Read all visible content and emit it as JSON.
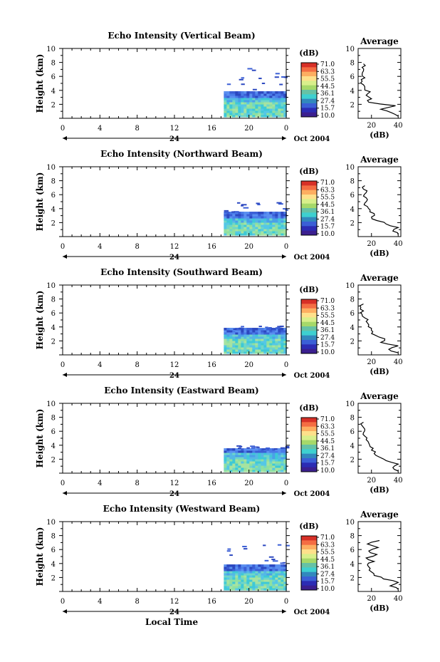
{
  "figure": {
    "colorbar_unit": "(dB)",
    "colorbar_ticks": [
      "71.0",
      "63.3",
      "55.5",
      "44.5",
      "36.1",
      "27.4",
      "15.7",
      "10.0"
    ],
    "colorbar_colors": [
      "#d73027",
      "#f46d43",
      "#fdae61",
      "#fee08b",
      "#d9ef8b",
      "#a6d96a",
      "#66c2a5",
      "#3ed0d0",
      "#3288bd",
      "#3b5fd6",
      "#2c2cb4",
      "#3b1f8f"
    ],
    "avg_title": "Average",
    "avg_xlabel": "(dB)",
    "bottom_label": "Local Time"
  },
  "chart_data": [
    {
      "type": "heatmap",
      "title": "Echo Intensity (Vertical Beam)",
      "ylabel": "Height (km)",
      "xlim": [
        0,
        24
      ],
      "ylim": [
        0,
        10
      ],
      "x_ticks": [
        "0",
        "4",
        "8",
        "12",
        "16",
        "20",
        "0"
      ],
      "y_ticks": [
        "2",
        "4",
        "6",
        "8",
        "10"
      ],
      "date_label": "24",
      "date_right": "Oct 2004",
      "echo_region": {
        "x_start": 17.3,
        "x_end": 24,
        "y_min": 0.2,
        "y_max": 3.6,
        "scattered_top": 7.5
      },
      "average": {
        "xlim": [
          10,
          42
        ],
        "x_ticks": [
          "20",
          "40"
        ],
        "ylim": [
          0,
          10
        ],
        "heights": [
          0.3,
          0.8,
          1.3,
          1.8,
          2.3,
          2.8,
          3.3,
          3.8,
          4.3,
          4.8,
          5.3,
          5.8,
          6.3,
          6.8,
          7.3,
          7.8
        ],
        "values": [
          40,
          35,
          27,
          38,
          18,
          20,
          16,
          19,
          15,
          14,
          13,
          15,
          13,
          14,
          13,
          14
        ]
      }
    },
    {
      "type": "heatmap",
      "title": "Echo Intensity (Northward Beam)",
      "ylabel": "Height (km)",
      "xlim": [
        0,
        24
      ],
      "ylim": [
        0,
        10
      ],
      "x_ticks": [
        "0",
        "4",
        "8",
        "12",
        "16",
        "20",
        "0"
      ],
      "y_ticks": [
        "2",
        "4",
        "6",
        "8",
        "10"
      ],
      "date_label": "24",
      "date_right": "Oct 2004",
      "echo_region": {
        "x_start": 17.3,
        "x_end": 24,
        "y_min": 0.2,
        "y_max": 3.4,
        "scattered_top": 5.3
      },
      "average": {
        "xlim": [
          10,
          42
        ],
        "x_ticks": [
          "20",
          "40"
        ],
        "ylim": [
          0,
          10
        ],
        "heights": [
          0.3,
          0.8,
          1.3,
          1.8,
          2.3,
          2.8,
          3.3,
          3.8,
          4.3,
          4.8,
          5.3,
          5.8,
          6.3,
          6.8,
          7.3
        ],
        "values": [
          40,
          36,
          40,
          31,
          24,
          20,
          22,
          19,
          17,
          15,
          17,
          14,
          16,
          14,
          15
        ]
      }
    },
    {
      "type": "heatmap",
      "title": "Echo Intensity (Southward Beam)",
      "ylabel": "Height (km)",
      "xlim": [
        0,
        24
      ],
      "ylim": [
        0,
        10
      ],
      "x_ticks": [
        "0",
        "4",
        "8",
        "12",
        "16",
        "20",
        "0"
      ],
      "y_ticks": [
        "2",
        "4",
        "6",
        "8",
        "10"
      ],
      "date_label": "24",
      "date_right": "Oct 2004",
      "echo_region": {
        "x_start": 17.3,
        "x_end": 24,
        "y_min": 0.2,
        "y_max": 3.6,
        "scattered_top": 4.2
      },
      "average": {
        "xlim": [
          10,
          42
        ],
        "x_ticks": [
          "20",
          "40"
        ],
        "ylim": [
          0,
          10
        ],
        "heights": [
          0.3,
          0.8,
          1.3,
          1.8,
          2.3,
          2.8,
          3.3,
          3.8,
          4.3,
          4.8,
          5.3,
          5.8,
          6.3,
          6.8,
          7.3
        ],
        "values": [
          40,
          33,
          40,
          27,
          30,
          23,
          21,
          20,
          18,
          16,
          15,
          13,
          14,
          12,
          14
        ]
      }
    },
    {
      "type": "heatmap",
      "title": "Echo Intensity (Eastward Beam)",
      "ylabel": "Height (km)",
      "xlim": [
        0,
        24
      ],
      "ylim": [
        0,
        10
      ],
      "x_ticks": [
        "0",
        "4",
        "8",
        "12",
        "16",
        "20",
        "0"
      ],
      "y_ticks": [
        "2",
        "4",
        "6",
        "8",
        "10"
      ],
      "date_label": "24",
      "date_right": "Oct 2004",
      "echo_region": {
        "x_start": 17.3,
        "x_end": 24,
        "y_min": 0.2,
        "y_max": 3.5,
        "scattered_top": 4.0
      },
      "average": {
        "xlim": [
          10,
          42
        ],
        "x_ticks": [
          "20",
          "40"
        ],
        "ylim": [
          0,
          10
        ],
        "heights": [
          0.3,
          0.8,
          1.3,
          1.8,
          2.3,
          2.8,
          3.3,
          3.8,
          4.3,
          4.8,
          5.3,
          5.8,
          6.3,
          6.8,
          7.3
        ],
        "values": [
          40,
          36,
          40,
          31,
          26,
          22,
          20,
          19,
          18,
          16,
          15,
          14,
          15,
          13,
          14
        ]
      }
    },
    {
      "type": "heatmap",
      "title": "Echo Intensity (Westward Beam)",
      "ylabel": "Height (km)",
      "xlim": [
        0,
        24
      ],
      "ylim": [
        0,
        10
      ],
      "x_ticks": [
        "0",
        "4",
        "8",
        "12",
        "16",
        "20",
        "0"
      ],
      "y_ticks": [
        "2",
        "4",
        "6",
        "8",
        "10"
      ],
      "date_label": "24",
      "date_right": "Oct 2004",
      "echo_region": {
        "x_start": 17.3,
        "x_end": 24,
        "y_min": 0.2,
        "y_max": 3.6,
        "scattered_top": 7.3
      },
      "average": {
        "xlim": [
          10,
          42
        ],
        "x_ticks": [
          "20",
          "40"
        ],
        "ylim": [
          0,
          10
        ],
        "heights": [
          0.3,
          0.8,
          1.3,
          1.8,
          2.3,
          2.8,
          3.3,
          3.8,
          4.3,
          4.8,
          5.3,
          5.8,
          6.3,
          6.8,
          7.3
        ],
        "values": [
          40,
          34,
          40,
          29,
          22,
          20,
          19,
          17,
          22,
          16,
          24,
          18,
          25,
          17,
          26
        ]
      }
    }
  ]
}
